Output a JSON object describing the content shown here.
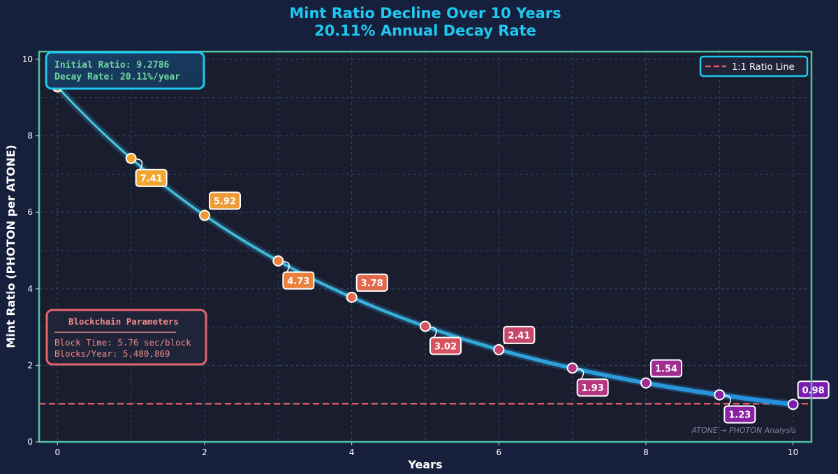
{
  "chart_data": {
    "type": "line",
    "title": "Mint Ratio Decline Over 10 Years",
    "subtitle": "20.11% Annual Decay Rate",
    "xlabel": "Years",
    "ylabel": "Mint Ratio (PHOTON per ATONE)",
    "xlim": [
      -0.25,
      10.25
    ],
    "ylim": [
      0,
      10.2
    ],
    "xticks": [
      "0",
      "2",
      "4",
      "6",
      "8",
      "10"
    ],
    "yticks": [
      "0",
      "2",
      "4",
      "6",
      "8",
      "10"
    ],
    "grid": true,
    "initial_ratio": 9.2786,
    "decay_rate": 0.2011,
    "x": [
      0,
      1,
      2,
      3,
      4,
      5,
      6,
      7,
      8,
      9,
      10
    ],
    "y": [
      9.28,
      7.41,
      5.92,
      4.73,
      3.78,
      3.02,
      2.41,
      1.93,
      1.54,
      1.23,
      0.98
    ],
    "point_labels": [
      "",
      "7.41",
      "5.92",
      "4.73",
      "3.78",
      "3.02",
      "2.41",
      "1.93",
      "1.54",
      "1.23",
      "0.98"
    ],
    "point_colors": [
      "#f5b52e",
      "#f1a72f",
      "#ee9a35",
      "#e9813f",
      "#e26a4c",
      "#d65360",
      "#c8466b",
      "#b33880",
      "#a22d90",
      "#8a22a3",
      "#7b1bb1"
    ],
    "reference_line": {
      "name": "1:1 Ratio Line",
      "y": 1.0,
      "color": "#e05a66"
    },
    "legend": {
      "placement": "top-right",
      "entries": [
        "1:1 Ratio Line"
      ]
    },
    "line_color": "#2d9fe0"
  },
  "info_box": {
    "line1": "Initial Ratio: 9.2786",
    "line2": "Decay Rate: 20.11%/year"
  },
  "params_box": {
    "title": "Blockchain Parameters",
    "line1": "Block Time: 5.76 sec/block",
    "line2": "Blocks/Year: 5,480,869"
  },
  "watermark": "ATONE → PHOTON Analysis",
  "colors": {
    "background": "#16203c",
    "plot_background": "#1a1d2e",
    "frame": "#4fc3a1",
    "title": "#1fc8f0",
    "info_text": "#6dd7a0",
    "params_text": "#f08080"
  }
}
